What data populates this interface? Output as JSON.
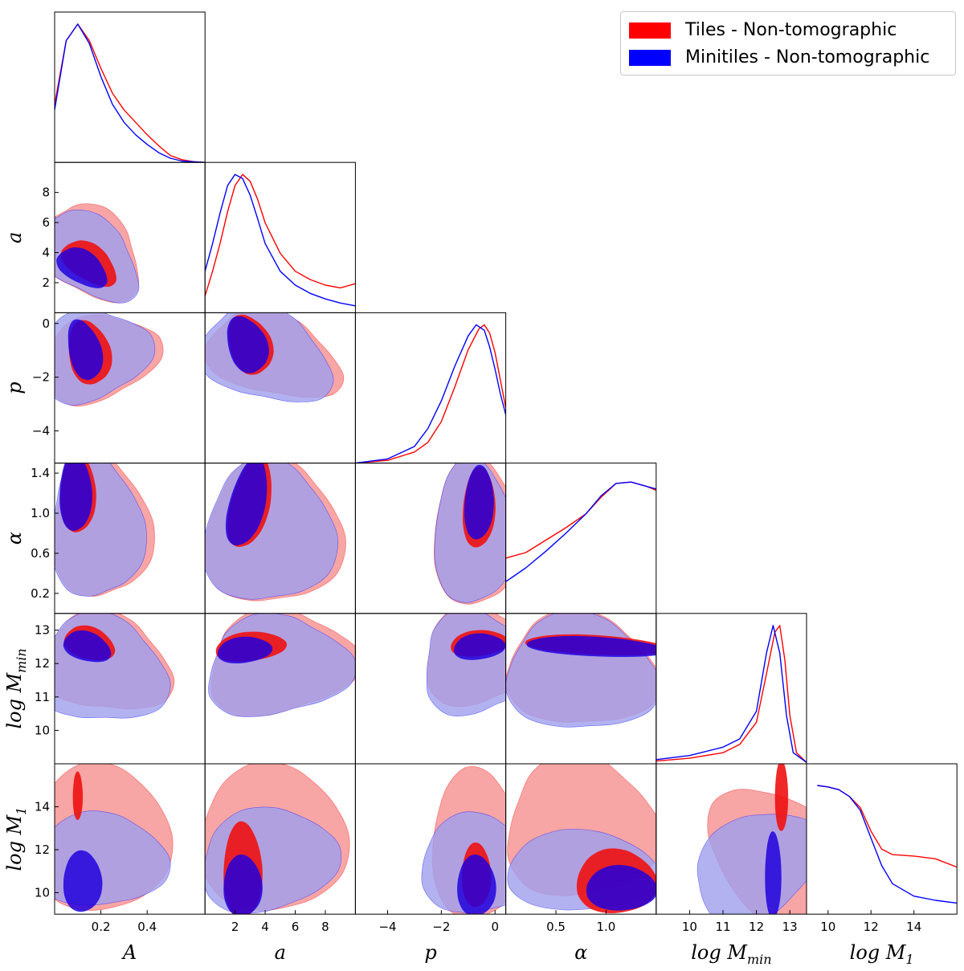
{
  "chart_data": {
    "type": "corner",
    "parameters": [
      {
        "key": "A",
        "label": "A",
        "range": [
          0,
          0.65
        ],
        "ticks": [
          0.2,
          0.4
        ],
        "tick_labels": [
          "0.2",
          "0.4"
        ]
      },
      {
        "key": "a",
        "label": "a",
        "range": [
          0,
          10
        ],
        "ticks": [
          2,
          4,
          6,
          8
        ],
        "tick_labels": [
          "2",
          "4",
          "6",
          "8"
        ]
      },
      {
        "key": "p",
        "label": "p",
        "range": [
          -5.2,
          0.4
        ],
        "ticks": [
          -4,
          -2,
          0
        ],
        "tick_labels": [
          "−4",
          "−2",
          "0"
        ]
      },
      {
        "key": "alpha",
        "label": "α",
        "range": [
          0,
          1.5
        ],
        "ticks": [
          0.2,
          0.6,
          1.0,
          1.4
        ],
        "tick_labels": [
          "0.2",
          "0.6",
          "1.0",
          "1.4"
        ],
        "x_ticks": [
          0.5,
          1.0
        ],
        "x_tick_labels": [
          "0.5",
          "1.0"
        ]
      },
      {
        "key": "logMmin",
        "label": "log M_min",
        "range": [
          9,
          13.5
        ],
        "ticks": [
          10,
          11,
          12,
          13
        ],
        "tick_labels": [
          "10",
          "11",
          "12",
          "13"
        ]
      },
      {
        "key": "logM1",
        "label": "log M_1",
        "range": [
          9,
          16
        ],
        "ticks": [
          10,
          12,
          14
        ],
        "tick_labels": [
          "10",
          "12",
          "14"
        ]
      }
    ],
    "axis_labels": {
      "x": [
        "A",
        "a",
        "p",
        "α",
        "log M",
        "log M"
      ],
      "x_sub": [
        "",
        "",
        "",
        "",
        "min",
        "1"
      ],
      "y": [
        "a",
        "p",
        "α",
        "log M",
        "log M"
      ],
      "y_sub": [
        "",
        "",
        "",
        "min",
        "1"
      ]
    },
    "series": [
      {
        "name": "Tiles - Non-tomographic",
        "color": "#ff0000",
        "fill_outer": "#f7a0a0",
        "fill_inner": "#ee1111",
        "marginals": {
          "A": [
            [
              0,
              0.42
            ],
            [
              0.05,
              0.88
            ],
            [
              0.1,
              1.0
            ],
            [
              0.15,
              0.88
            ],
            [
              0.2,
              0.68
            ],
            [
              0.25,
              0.5
            ],
            [
              0.3,
              0.38
            ],
            [
              0.35,
              0.29
            ],
            [
              0.4,
              0.2
            ],
            [
              0.45,
              0.12
            ],
            [
              0.5,
              0.05
            ],
            [
              0.55,
              0.02
            ],
            [
              0.6,
              0.005
            ],
            [
              0.65,
              0
            ]
          ],
          "a": [
            [
              0,
              0.12
            ],
            [
              0.5,
              0.3
            ],
            [
              1,
              0.5
            ],
            [
              1.5,
              0.73
            ],
            [
              2,
              0.92
            ],
            [
              2.5,
              1.0
            ],
            [
              3,
              0.95
            ],
            [
              3.5,
              0.82
            ],
            [
              4,
              0.65
            ],
            [
              5,
              0.43
            ],
            [
              6,
              0.3
            ],
            [
              7,
              0.24
            ],
            [
              8,
              0.2
            ],
            [
              9,
              0.18
            ],
            [
              10,
              0.21
            ]
          ],
          "p": [
            [
              -5.2,
              0
            ],
            [
              -4,
              0.02
            ],
            [
              -3,
              0.08
            ],
            [
              -2.5,
              0.15
            ],
            [
              -2,
              0.3
            ],
            [
              -1.5,
              0.55
            ],
            [
              -1,
              0.82
            ],
            [
              -0.6,
              0.97
            ],
            [
              -0.4,
              1.0
            ],
            [
              -0.2,
              0.94
            ],
            [
              0,
              0.8
            ],
            [
              0.2,
              0.6
            ],
            [
              0.4,
              0.4
            ]
          ],
          "alpha": [
            [
              0,
              0.4
            ],
            [
              0.2,
              0.44
            ],
            [
              0.4,
              0.53
            ],
            [
              0.6,
              0.62
            ],
            [
              0.8,
              0.72
            ],
            [
              0.95,
              0.84
            ],
            [
              1.1,
              0.94
            ],
            [
              1.25,
              0.95
            ],
            [
              1.4,
              0.92
            ],
            [
              1.5,
              0.89
            ]
          ],
          "logMmin": [
            [
              9,
              0.02
            ],
            [
              10,
              0.04
            ],
            [
              11,
              0.08
            ],
            [
              11.5,
              0.14
            ],
            [
              12,
              0.3
            ],
            [
              12.3,
              0.65
            ],
            [
              12.55,
              0.95
            ],
            [
              12.7,
              1.0
            ],
            [
              12.85,
              0.75
            ],
            [
              13,
              0.35
            ],
            [
              13.2,
              0.08
            ],
            [
              13.5,
              0.01
            ]
          ],
          "logM1": [
            [
              9.5,
              0.93
            ],
            [
              10,
              0.92
            ],
            [
              10.5,
              0.9
            ],
            [
              11,
              0.85
            ],
            [
              11.5,
              0.77
            ],
            [
              12,
              0.6
            ],
            [
              12.5,
              0.47
            ],
            [
              13,
              0.43
            ],
            [
              14,
              0.42
            ],
            [
              15,
              0.4
            ],
            [
              16,
              0.34
            ]
          ]
        }
      },
      {
        "name": "Minitiles - Non-tomographic",
        "color": "#0000ff",
        "fill_outer": "#9f9fee",
        "fill_inner": "#2200dd",
        "marginals": {
          "A": [
            [
              0,
              0.38
            ],
            [
              0.05,
              0.88
            ],
            [
              0.1,
              1.0
            ],
            [
              0.15,
              0.86
            ],
            [
              0.2,
              0.62
            ],
            [
              0.25,
              0.42
            ],
            [
              0.3,
              0.29
            ],
            [
              0.35,
              0.2
            ],
            [
              0.4,
              0.13
            ],
            [
              0.45,
              0.07
            ],
            [
              0.5,
              0.03
            ],
            [
              0.55,
              0.01
            ],
            [
              0.65,
              0
            ]
          ],
          "a": [
            [
              0,
              0.3
            ],
            [
              0.5,
              0.5
            ],
            [
              1,
              0.72
            ],
            [
              1.5,
              0.92
            ],
            [
              2,
              1.0
            ],
            [
              2.5,
              0.97
            ],
            [
              3,
              0.85
            ],
            [
              3.5,
              0.68
            ],
            [
              4,
              0.5
            ],
            [
              5,
              0.3
            ],
            [
              6,
              0.2
            ],
            [
              7,
              0.14
            ],
            [
              8,
              0.1
            ],
            [
              9,
              0.07
            ],
            [
              10,
              0.05
            ]
          ],
          "p": [
            [
              -5.2,
              0
            ],
            [
              -4,
              0.03
            ],
            [
              -3,
              0.12
            ],
            [
              -2.5,
              0.25
            ],
            [
              -2,
              0.45
            ],
            [
              -1.5,
              0.7
            ],
            [
              -1,
              0.92
            ],
            [
              -0.7,
              1.0
            ],
            [
              -0.4,
              0.96
            ],
            [
              -0.2,
              0.84
            ],
            [
              0,
              0.68
            ],
            [
              0.2,
              0.5
            ],
            [
              0.4,
              0.35
            ]
          ],
          "alpha": [
            [
              0,
              0.23
            ],
            [
              0.2,
              0.33
            ],
            [
              0.4,
              0.45
            ],
            [
              0.6,
              0.58
            ],
            [
              0.8,
              0.72
            ],
            [
              0.95,
              0.85
            ],
            [
              1.1,
              0.94
            ],
            [
              1.25,
              0.95
            ],
            [
              1.4,
              0.92
            ],
            [
              1.5,
              0.9
            ]
          ],
          "logMmin": [
            [
              9,
              0.03
            ],
            [
              10,
              0.06
            ],
            [
              11,
              0.12
            ],
            [
              11.5,
              0.18
            ],
            [
              12,
              0.38
            ],
            [
              12.3,
              0.8
            ],
            [
              12.5,
              1.0
            ],
            [
              12.7,
              0.8
            ],
            [
              12.9,
              0.35
            ],
            [
              13.1,
              0.08
            ],
            [
              13.5,
              0.01
            ]
          ],
          "logM1": [
            [
              9.5,
              0.93
            ],
            [
              10,
              0.92
            ],
            [
              10.5,
              0.9
            ],
            [
              11,
              0.85
            ],
            [
              11.5,
              0.75
            ],
            [
              12,
              0.55
            ],
            [
              12.5,
              0.35
            ],
            [
              13,
              0.22
            ],
            [
              14,
              0.13
            ],
            [
              15,
              0.1
            ],
            [
              16,
              0.08
            ]
          ]
        }
      }
    ]
  },
  "legend": {
    "items": [
      {
        "label": "Tiles - Non-tomographic",
        "color": "#ff0000"
      },
      {
        "label": "Minitiles - Non-tomographic",
        "color": "#0000ff"
      }
    ]
  }
}
